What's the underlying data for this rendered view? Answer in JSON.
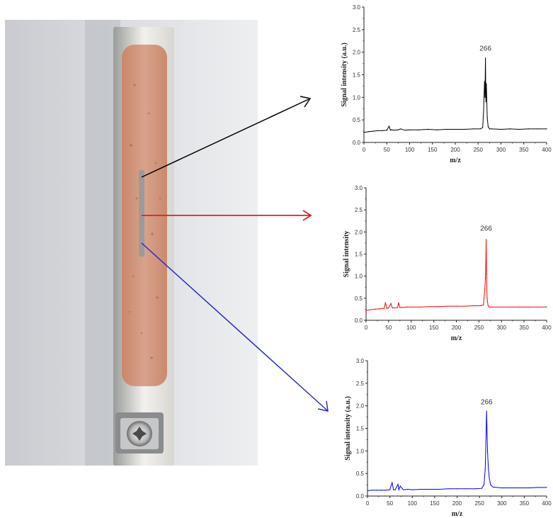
{
  "photo": {
    "description_icon": "sample-plate-photo"
  },
  "arrows": [
    {
      "color": "#000000"
    },
    {
      "color": "#e02020"
    },
    {
      "color": "#2a2ad0"
    }
  ],
  "chart_data": [
    {
      "type": "line",
      "color": "#000000",
      "xlabel": "m/z",
      "ylabel": "Signal intensity (a.u.)",
      "xlim": [
        0,
        400
      ],
      "ylim": [
        0,
        3.0
      ],
      "xticks": [
        "0",
        "50",
        "100",
        "150",
        "200",
        "250",
        "300",
        "350",
        "400"
      ],
      "yticks": [
        "0.0",
        "0.5",
        "1.0",
        "1.5",
        "2.0",
        "2.5",
        "3.0"
      ],
      "annotation": "266",
      "series": [
        {
          "x": [
            0,
            10,
            20,
            30,
            40,
            50,
            55,
            58,
            60,
            65,
            75,
            80,
            90,
            100,
            120,
            140,
            160,
            180,
            200,
            220,
            240,
            255,
            260,
            262,
            264,
            265,
            266,
            267,
            268,
            270,
            272,
            275,
            280,
            300,
            320,
            340,
            360,
            380,
            400
          ],
          "y": [
            0.22,
            0.24,
            0.25,
            0.26,
            0.26,
            0.27,
            0.36,
            0.27,
            0.28,
            0.27,
            0.28,
            0.3,
            0.27,
            0.28,
            0.28,
            0.29,
            0.28,
            0.29,
            0.29,
            0.29,
            0.3,
            0.3,
            0.33,
            0.7,
            1.35,
            1.0,
            1.87,
            0.9,
            1.3,
            0.55,
            0.35,
            0.3,
            0.3,
            0.29,
            0.3,
            0.29,
            0.3,
            0.3,
            0.3
          ]
        }
      ]
    },
    {
      "type": "line",
      "color": "#ff0000",
      "xlabel": "m/z",
      "ylabel": "Signal intensity",
      "xlim": [
        0,
        400
      ],
      "ylim": [
        0,
        3.0
      ],
      "xticks": [
        "0",
        "50",
        "100",
        "150",
        "200",
        "250",
        "300",
        "350",
        "400"
      ],
      "yticks": [
        "0.0",
        "0.5",
        "1.0",
        "1.5",
        "2.0",
        "2.5",
        "3.0"
      ],
      "annotation": "266",
      "series": [
        {
          "x": [
            0,
            10,
            20,
            30,
            40,
            43,
            46,
            50,
            55,
            58,
            62,
            70,
            72,
            75,
            80,
            90,
            100,
            120,
            140,
            160,
            180,
            200,
            220,
            240,
            255,
            260,
            263,
            265,
            266,
            267,
            268,
            270,
            272,
            275,
            280,
            300,
            320,
            340,
            360,
            380,
            400
          ],
          "y": [
            0.22,
            0.24,
            0.25,
            0.26,
            0.27,
            0.4,
            0.27,
            0.28,
            0.38,
            0.28,
            0.28,
            0.29,
            0.4,
            0.29,
            0.29,
            0.3,
            0.3,
            0.3,
            0.31,
            0.31,
            0.32,
            0.32,
            0.32,
            0.33,
            0.33,
            0.35,
            0.7,
            1.05,
            1.83,
            0.95,
            0.5,
            0.35,
            0.3,
            0.3,
            0.3,
            0.3,
            0.3,
            0.3,
            0.3,
            0.3,
            0.3
          ]
        }
      ]
    },
    {
      "type": "line",
      "color": "#0000ff",
      "xlabel": "m/z",
      "ylabel": "Signal intensity (a.u.)",
      "xlim": [
        0,
        400
      ],
      "ylim": [
        0,
        3.0
      ],
      "xticks": [
        "0",
        "50",
        "100",
        "150",
        "200",
        "250",
        "300",
        "350",
        "400"
      ],
      "yticks": [
        "0.0",
        "0.5",
        "1.0",
        "1.5",
        "2.0",
        "2.5",
        "3.0"
      ],
      "annotation": "266",
      "series": [
        {
          "x": [
            0,
            10,
            20,
            30,
            40,
            50,
            55,
            58,
            62,
            68,
            70,
            73,
            80,
            90,
            100,
            120,
            140,
            160,
            180,
            200,
            220,
            240,
            255,
            260,
            263,
            265,
            266,
            267,
            268,
            270,
            272,
            275,
            280,
            300,
            320,
            340,
            360,
            380,
            400
          ],
          "y": [
            0.12,
            0.13,
            0.13,
            0.13,
            0.13,
            0.14,
            0.3,
            0.14,
            0.14,
            0.26,
            0.14,
            0.22,
            0.14,
            0.15,
            0.14,
            0.15,
            0.15,
            0.15,
            0.16,
            0.16,
            0.16,
            0.16,
            0.17,
            0.25,
            0.6,
            1.45,
            1.88,
            1.4,
            1.0,
            0.6,
            0.4,
            0.25,
            0.2,
            0.18,
            0.18,
            0.18,
            0.18,
            0.19,
            0.19
          ]
        }
      ]
    }
  ]
}
